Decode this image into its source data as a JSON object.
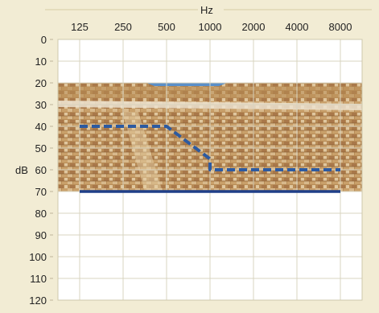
{
  "chart_data": {
    "type": "line",
    "title": "",
    "xlabel": "Hz",
    "ylabel": "dB",
    "x_scale": "log",
    "x_ticks": [
      "125",
      "250",
      "500",
      "1000",
      "2000",
      "4000",
      "8000"
    ],
    "y_ticks": [
      "0",
      "10",
      "20",
      "30",
      "40",
      "50",
      "60",
      "70",
      "80",
      "90",
      "100",
      "110",
      "120"
    ],
    "ylim": [
      0,
      120
    ],
    "y_inverted": true,
    "grid": true,
    "series": [
      {
        "style": "dashed",
        "color": "#2d5aa0",
        "points": [
          {
            "x": 125,
            "y": 40
          },
          {
            "x": 500,
            "y": 40
          },
          {
            "x": 1000,
            "y": 55
          },
          {
            "x": 1000,
            "y": 60
          },
          {
            "x": 8000,
            "y": 60
          }
        ]
      },
      {
        "style": "solid",
        "color": "#1f3f88",
        "points": [
          {
            "x": 125,
            "y": 70
          },
          {
            "x": 8000,
            "y": 70
          }
        ]
      }
    ],
    "background_image": {
      "description": "photo of ancient amphitheater stone seating",
      "y_range": [
        20,
        70
      ]
    }
  },
  "colors": {
    "page_bg": "#f2ecd4",
    "plot_bg": "#ffffff",
    "grid": "#d9d4c0",
    "stone_light": "#d8b88a",
    "stone_mid": "#b78a52",
    "stone_dark": "#8a5f33",
    "sky": "#5a8fc8"
  }
}
